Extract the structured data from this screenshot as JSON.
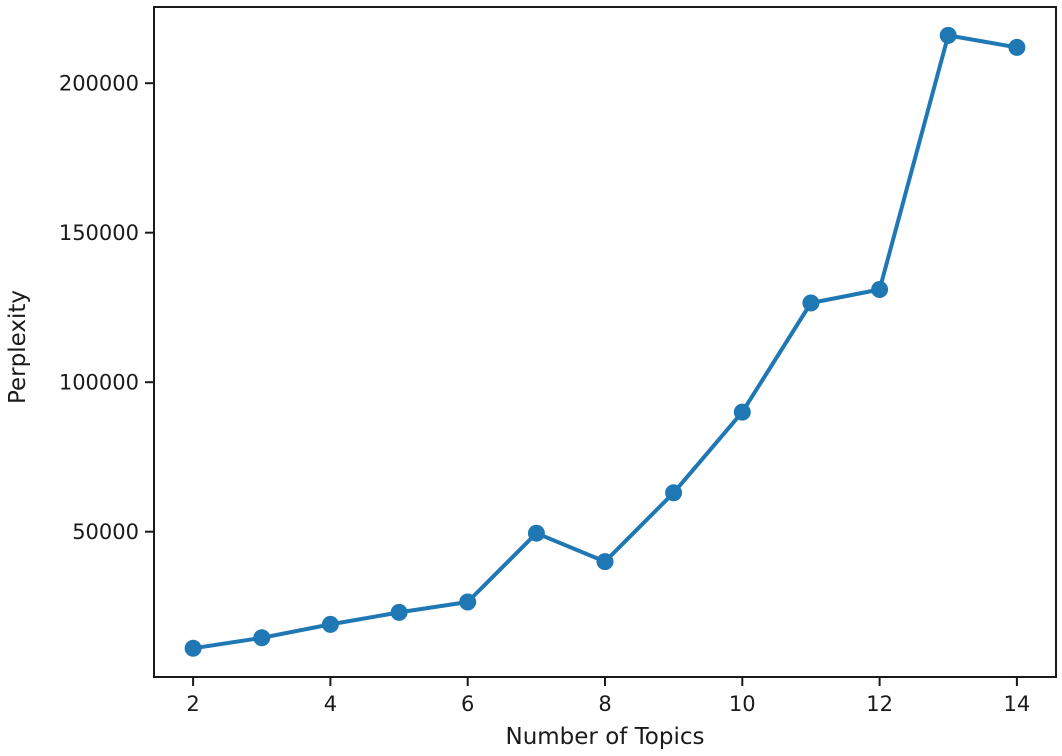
{
  "chart_data": {
    "type": "line",
    "title": "",
    "xlabel": "Number of Topics",
    "ylabel": "Perplexity",
    "x": [
      2,
      3,
      4,
      5,
      6,
      7,
      8,
      9,
      10,
      11,
      12,
      13,
      14
    ],
    "series": [
      {
        "name": "Perplexity",
        "values": [
          11000,
          14500,
          19000,
          23000,
          26500,
          49500,
          40000,
          63000,
          90000,
          126500,
          131000,
          216000,
          212000
        ]
      }
    ],
    "xticks": [
      2,
      4,
      6,
      8,
      10,
      12,
      14
    ],
    "yticks": [
      50000,
      100000,
      150000,
      200000
    ],
    "xlim": [
      1.43,
      14.57
    ],
    "ylim": [
      1400,
      225500
    ],
    "grid": false,
    "legend_position": "none",
    "line_color": "#1f77b4",
    "marker": "o",
    "axis_color": "#1a1a1a"
  }
}
